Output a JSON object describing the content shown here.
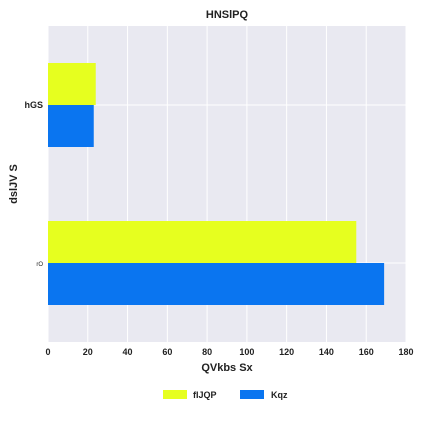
{
  "chart_data": {
    "type": "bar",
    "orientation": "horizontal",
    "title": "HNSlPQ",
    "xlabel": "QVkbs Sx",
    "ylabel": "dslJV  S",
    "categories": [
      "hGS",
      "rO"
    ],
    "series": [
      {
        "name": "fIJQP",
        "color": "#e6ff1f",
        "values": [
          24,
          155
        ]
      },
      {
        "name": "Kqz",
        "color": "#0a75f0",
        "values": [
          23,
          169
        ]
      }
    ],
    "xlim": [
      0,
      180
    ],
    "xticks": [
      0,
      20,
      40,
      60,
      80,
      100,
      120,
      140,
      160,
      180
    ],
    "grid": true,
    "legend_position": "bottom-center"
  }
}
